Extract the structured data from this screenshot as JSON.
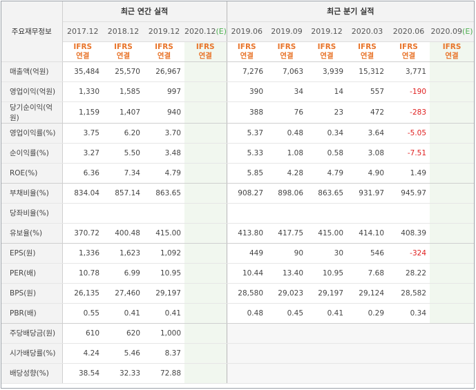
{
  "header": {
    "corner_label": "주요재무정보",
    "annual_title": "최근 연간 실적",
    "quarter_title": "최근 분기 실적",
    "annual_periods": [
      "2017.12",
      "2018.12",
      "2019.12",
      "2020.12"
    ],
    "annual_estimate_suffix": "(E)",
    "quarter_periods": [
      "2019.06",
      "2019.09",
      "2019.12",
      "2020.03",
      "2020.06",
      "2020.09"
    ],
    "quarter_estimate_suffix": "(E)",
    "basis_line1": "IFRS",
    "basis_line2": "연결"
  },
  "rows": [
    {
      "label": "매출액(억원)",
      "annual": [
        "35,484",
        "25,570",
        "26,967",
        ""
      ],
      "quarter": [
        "7,276",
        "7,063",
        "3,939",
        "15,312",
        "3,771",
        ""
      ]
    },
    {
      "label": "영업이익(억원)",
      "annual": [
        "1,330",
        "1,585",
        "997",
        ""
      ],
      "quarter": [
        "390",
        "34",
        "14",
        "557",
        "-190",
        ""
      ]
    },
    {
      "label": "당기순이익(억원)",
      "annual": [
        "1,159",
        "1,407",
        "940",
        ""
      ],
      "quarter": [
        "388",
        "76",
        "23",
        "472",
        "-283",
        ""
      ]
    },
    {
      "label": "영업이익률(%)",
      "annual": [
        "3.75",
        "6.20",
        "3.70",
        ""
      ],
      "quarter": [
        "5.37",
        "0.48",
        "0.34",
        "3.64",
        "-5.05",
        ""
      ]
    },
    {
      "label": "순이익률(%)",
      "annual": [
        "3.27",
        "5.50",
        "3.48",
        ""
      ],
      "quarter": [
        "5.33",
        "1.08",
        "0.58",
        "3.08",
        "-7.51",
        ""
      ]
    },
    {
      "label": "ROE(%)",
      "annual": [
        "6.36",
        "7.34",
        "4.79",
        ""
      ],
      "quarter": [
        "5.85",
        "4.28",
        "4.79",
        "4.90",
        "1.49",
        ""
      ]
    },
    {
      "label": "부채비율(%)",
      "annual": [
        "834.04",
        "857.14",
        "863.65",
        ""
      ],
      "quarter": [
        "908.27",
        "898.06",
        "863.65",
        "931.97",
        "945.97",
        ""
      ]
    },
    {
      "label": "당좌비율(%)",
      "annual": [
        "",
        "",
        "",
        ""
      ],
      "quarter": [
        "",
        "",
        "",
        "",
        "",
        ""
      ]
    },
    {
      "label": "유보율(%)",
      "annual": [
        "370.72",
        "400.48",
        "415.00",
        ""
      ],
      "quarter": [
        "413.80",
        "417.75",
        "415.00",
        "414.10",
        "408.39",
        ""
      ]
    },
    {
      "label": "EPS(원)",
      "annual": [
        "1,336",
        "1,623",
        "1,092",
        ""
      ],
      "quarter": [
        "449",
        "90",
        "30",
        "546",
        "-324",
        ""
      ]
    },
    {
      "label": "PER(배)",
      "annual": [
        "10.78",
        "6.99",
        "10.95",
        ""
      ],
      "quarter": [
        "10.44",
        "13.40",
        "10.95",
        "7.68",
        "28.22",
        ""
      ]
    },
    {
      "label": "BPS(원)",
      "annual": [
        "26,135",
        "27,460",
        "29,197",
        ""
      ],
      "quarter": [
        "28,580",
        "29,023",
        "29,197",
        "29,124",
        "28,582",
        ""
      ]
    },
    {
      "label": "PBR(배)",
      "annual": [
        "0.55",
        "0.41",
        "0.41",
        ""
      ],
      "quarter": [
        "0.48",
        "0.45",
        "0.41",
        "0.29",
        "0.34",
        ""
      ]
    },
    {
      "label": "주당배당금(원)",
      "annual": [
        "610",
        "620",
        "1,000",
        ""
      ],
      "quarter": [
        "",
        "",
        "",
        "",
        "",
        ""
      ]
    },
    {
      "label": "시가배당률(%)",
      "annual": [
        "4.24",
        "5.46",
        "8.37",
        ""
      ],
      "quarter": [
        "",
        "",
        "",
        "",
        "",
        ""
      ]
    },
    {
      "label": "배당성향(%)",
      "annual": [
        "38.54",
        "32.33",
        "72.88",
        ""
      ],
      "quarter": [
        "",
        "",
        "",
        "",
        "",
        ""
      ]
    }
  ],
  "colors": {
    "basis": "#e8742a",
    "negative": "#e02020",
    "estimate_bg": "#f1f7ef",
    "estimate_mark": "#4caf50",
    "header_bg": "#f3f3f3"
  }
}
